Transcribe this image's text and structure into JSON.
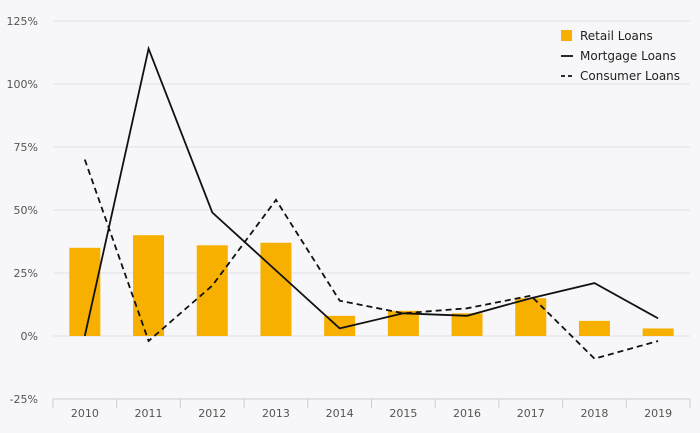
{
  "chart_data": {
    "type": "bar",
    "categories": [
      "2010",
      "2011",
      "2012",
      "2013",
      "2014",
      "2015",
      "2016",
      "2017",
      "2018",
      "2019"
    ],
    "series": [
      {
        "name": "Retail Loans",
        "kind": "bar",
        "color": "#f7b000",
        "values": [
          35,
          40,
          36,
          37,
          8,
          10,
          9,
          15,
          6,
          3
        ]
      },
      {
        "name": "Mortgage Loans",
        "kind": "line",
        "dash": "solid",
        "color": "#111111",
        "values": [
          0,
          114,
          49,
          26,
          3,
          9,
          8,
          15,
          21,
          7
        ]
      },
      {
        "name": "Consumer Loans",
        "kind": "line",
        "dash": "dashed",
        "color": "#111111",
        "values": [
          70,
          -2,
          20,
          54,
          14,
          9,
          11,
          16,
          -9,
          -2
        ]
      }
    ],
    "ylim": [
      -25,
      125
    ],
    "yticks": [
      -25,
      0,
      25,
      50,
      75,
      100,
      125
    ],
    "ytick_labels": [
      "-25%",
      "0%",
      "25%",
      "50%",
      "75%",
      "100%",
      "125%"
    ],
    "grid": true,
    "legend_position": "top-right",
    "title": "",
    "xlabel": "",
    "ylabel": ""
  }
}
